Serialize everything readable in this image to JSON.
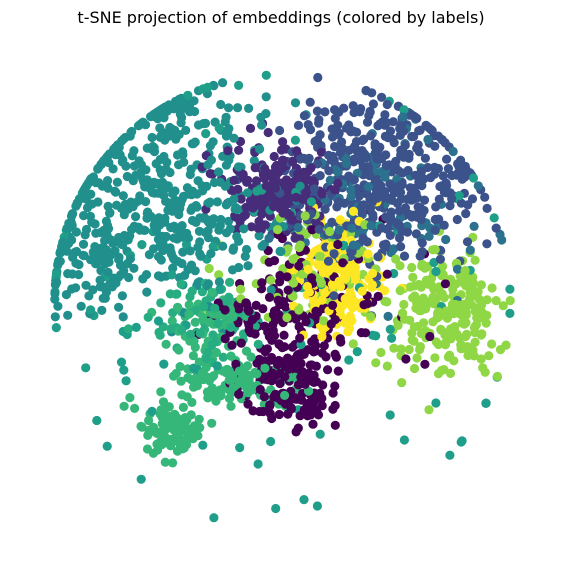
{
  "chart_data": {
    "type": "scatter",
    "title": "t-SNE projection of embeddings (colored by labels)",
    "xlabel": "",
    "ylabel": "",
    "axes_visible": false,
    "grid": false,
    "legend": "none",
    "xlim": [
      -100,
      100
    ],
    "ylim": [
      -100,
      100
    ],
    "marker": "circle",
    "palette": "viridis",
    "clusters": [
      {
        "label": 0,
        "color": "#440154",
        "center": [
          3,
          -32
        ],
        "spread": [
          10,
          10
        ],
        "count": 140
      },
      {
        "label": 0,
        "color": "#440154",
        "center": [
          0,
          -8
        ],
        "spread": [
          12,
          13
        ],
        "count": 110
      },
      {
        "label": 0,
        "color": "#440154",
        "center": [
          20,
          2
        ],
        "spread": [
          18,
          16
        ],
        "count": 55
      },
      {
        "label": 1,
        "color": "#472c7a",
        "center": [
          0,
          45
        ],
        "spread": [
          12,
          9
        ],
        "count": 230
      },
      {
        "label": 2,
        "color": "#3b528b",
        "center": [
          40,
          50
        ],
        "spread": [
          20,
          17
        ],
        "count": 430
      },
      {
        "label": 3,
        "color": "#2c728e",
        "center": [
          35,
          37
        ],
        "spread": [
          20,
          16
        ],
        "count": 90
      },
      {
        "label": 4,
        "color": "#21908d",
        "center": [
          -53,
          47
        ],
        "spread": [
          23,
          19
        ],
        "count": 250
      },
      {
        "label": 4,
        "color": "#21908d",
        "center": [
          -35,
          27
        ],
        "spread": [
          20,
          13
        ],
        "count": 120
      },
      {
        "label": 4,
        "color": "#21908d",
        "center": [
          -74,
          17
        ],
        "spread": [
          12,
          9
        ],
        "count": 95
      },
      {
        "label": 4,
        "color": "#21908d",
        "center": [
          -45,
          72
        ],
        "spread": [
          22,
          9
        ],
        "count": 70
      },
      {
        "label": 5,
        "color": "#27ad81",
        "center": [
          -30,
          -7
        ],
        "spread": [
          12,
          9
        ],
        "count": 65
      },
      {
        "label": 6,
        "color": "#35b779",
        "center": [
          -45,
          -52
        ],
        "spread": [
          7,
          6
        ],
        "count": 95
      },
      {
        "label": 6,
        "color": "#35b779",
        "center": [
          -20,
          -33
        ],
        "spread": [
          13,
          6
        ],
        "count": 110
      },
      {
        "label": 6,
        "color": "#35b779",
        "center": [
          -30,
          -10
        ],
        "spread": [
          10,
          8
        ],
        "count": 60
      },
      {
        "label": 7,
        "color": "#8fd744",
        "center": [
          65,
          -5
        ],
        "spread": [
          12,
          12
        ],
        "count": 220
      },
      {
        "label": 7,
        "color": "#8fd744",
        "center": [
          10,
          12
        ],
        "spread": [
          16,
          12
        ],
        "count": 90
      },
      {
        "label": 8,
        "color": "#fde725",
        "center": [
          23,
          10
        ],
        "spread": [
          8,
          11
        ],
        "count": 170
      },
      {
        "label": 9,
        "color": "#1f9e89",
        "center": [
          -10,
          10
        ],
        "spread": [
          60,
          50
        ],
        "count": 110
      }
    ]
  }
}
